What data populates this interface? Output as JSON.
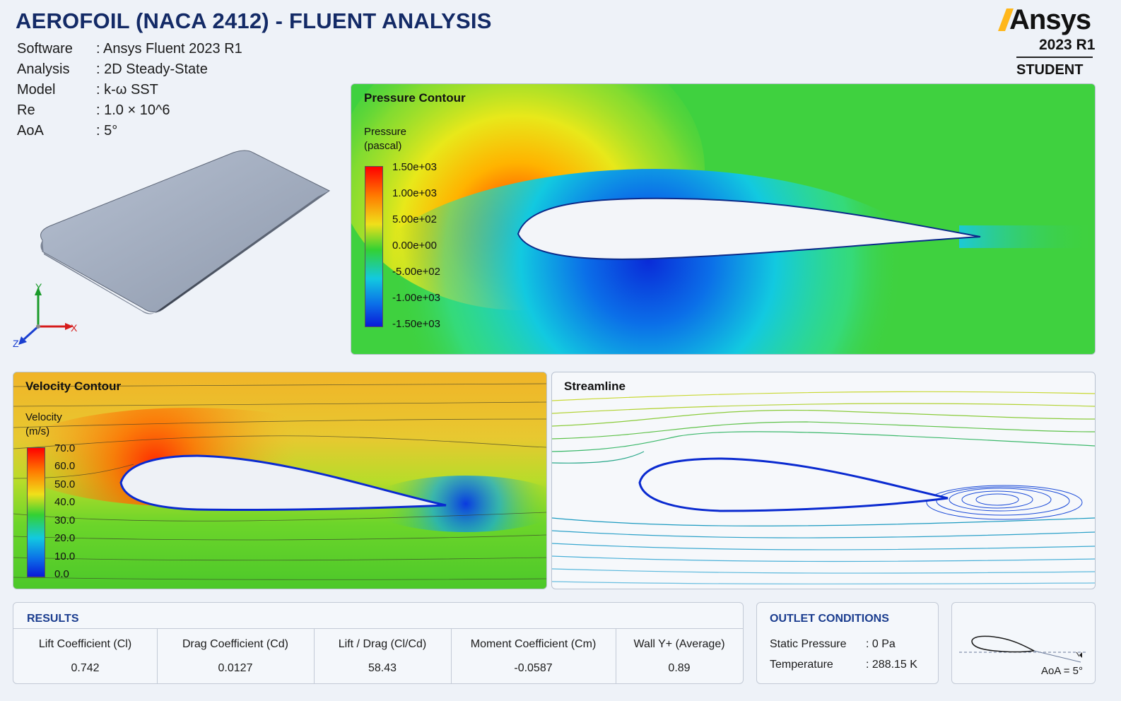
{
  "header": {
    "title": "AEROFOIL (NACA 2412) - FLUENT ANALYSIS",
    "meta": [
      {
        "key": "Software",
        "value": ": Ansys Fluent 2023 R1"
      },
      {
        "key": "Analysis",
        "value": ": 2D Steady-State"
      },
      {
        "key": "Model",
        "value": ": k-ω SST"
      },
      {
        "key": "Re",
        "value": ": 1.0 × 10^6"
      },
      {
        "key": "AoA",
        "value": ": 5°"
      }
    ]
  },
  "logo": {
    "word": "Ansys",
    "version": "2023 R1",
    "edition": "STUDENT",
    "accent": "#ffb71b"
  },
  "axes_triad": {
    "x": "X",
    "y": "Y",
    "z": "Z"
  },
  "pressure_panel": {
    "title": "Pressure Contour",
    "legend_title_1": "Pressure",
    "legend_title_2": "(pascal)",
    "ticks": [
      "1.50e+03",
      "1.00e+03",
      "5.00e+02",
      "0.00e+00",
      "-5.00e+02",
      "-1.00e+03",
      "-1.50e+03"
    ]
  },
  "velocity_panel": {
    "title": "Velocity Contour",
    "legend_title_1": "Velocity",
    "legend_title_2": "(m/s)",
    "ticks": [
      "70.0",
      "60.0",
      "50.0",
      "40.0",
      "30.0",
      "20.0",
      "10.0",
      "0.0"
    ]
  },
  "streamline_panel": {
    "title": "Streamline"
  },
  "results": {
    "title": "RESULTS",
    "columns": [
      {
        "label": "Lift Coefficient (Cl)",
        "value": "0.742"
      },
      {
        "label": "Drag Coefficient (Cd)",
        "value": "0.0127"
      },
      {
        "label": "Lift / Drag (Cl/Cd)",
        "value": "58.43"
      },
      {
        "label": "Moment Coefficient (Cm)",
        "value": "-0.0587"
      },
      {
        "label": "Wall Y+ (Average)",
        "value": "0.89"
      }
    ]
  },
  "outlet": {
    "title": "OUTLET CONDITIONS",
    "rows": [
      {
        "key": "Static Pressure",
        "value": ": 0 Pa"
      },
      {
        "key": "Temperature",
        "value": ": 288.15 K"
      }
    ]
  },
  "aoa_diagram": {
    "label": "AoA = 5°"
  },
  "colors": {
    "title": "#132a66",
    "section_heading": "#1b3d8f",
    "background": "#eef2f8"
  }
}
